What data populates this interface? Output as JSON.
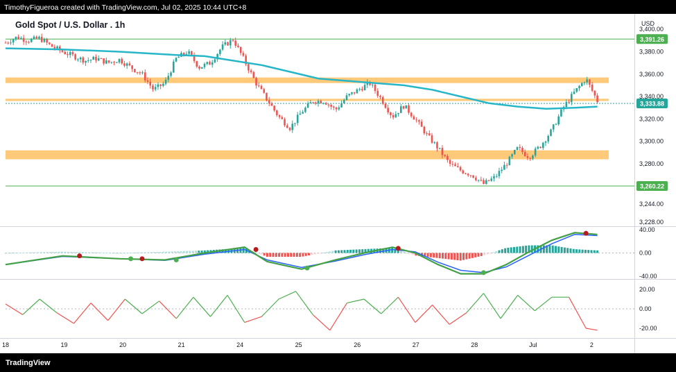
{
  "header": {
    "text": "TimothyFigueroa created with TradingView.com, Jul 02, 2025 10:44 UTC+8"
  },
  "footer": {
    "brand": "TradingView"
  },
  "chart_data": [
    {
      "type": "candlestick",
      "title": "Gold Spot / U.S. Dollar . 1h",
      "currency": "USD",
      "ylim": [
        3228,
        3410
      ],
      "y_ticks": [
        "3,400.00",
        "3,380.00",
        "3,360.00",
        "3,340.00",
        "3,320.00",
        "3,300.00",
        "3,280.00",
        "3,244.00",
        "3,228.00"
      ],
      "y_tick_values": [
        3400,
        3380,
        3360,
        3340,
        3320,
        3300,
        3280,
        3244,
        3228
      ],
      "x_ticks": [
        "18",
        "19",
        "20",
        "21",
        "24",
        "25",
        "26",
        "27",
        "28",
        "Jul",
        "2"
      ],
      "price_labels": [
        {
          "text": "3,391.26",
          "value": 3391.26,
          "color": "#4caf50"
        },
        {
          "text": "3,333.88",
          "value": 3333.88,
          "color": "#26a69a"
        },
        {
          "text": "3,260.22",
          "value": 3260.22,
          "color": "#4caf50"
        }
      ],
      "horizontal_lines": [
        3391.26,
        3260.22,
        3333.88
      ],
      "zones": [
        {
          "low": 3352,
          "high": 3357,
          "color": "#ffb74d"
        },
        {
          "low": 3336,
          "high": 3338,
          "color": "#ffb74d"
        },
        {
          "low": 3284,
          "high": 3292,
          "color": "#ffb74d"
        }
      ],
      "moving_average": {
        "color": "#26b6c8",
        "x": [
          0,
          1,
          2,
          3,
          3.5,
          4,
          4.5,
          5,
          5.5,
          6,
          6.5,
          7,
          7.5,
          8,
          8.5,
          9,
          9.5,
          10,
          10.4
        ],
        "y": [
          3383,
          3382,
          3380,
          3377,
          3376,
          3372,
          3368,
          3362,
          3356,
          3354,
          3352,
          3350,
          3346,
          3340,
          3334,
          3331,
          3329,
          3330,
          3331
        ]
      },
      "candle_path": {
        "x": [
          0,
          0.2,
          0.4,
          0.6,
          0.8,
          1,
          1.2,
          1.4,
          1.6,
          1.8,
          2,
          2.2,
          2.4,
          2.6,
          2.8,
          3,
          3.2,
          3.4,
          3.6,
          3.8,
          4,
          4.2,
          4.4,
          4.6,
          4.8,
          5,
          5.2,
          5.4,
          5.6,
          5.8,
          6,
          6.2,
          6.4,
          6.6,
          6.8,
          7,
          7.2,
          7.4,
          7.6,
          7.8,
          8,
          8.2,
          8.4,
          8.6,
          8.8,
          9,
          9.2,
          9.4,
          9.6,
          9.8,
          10,
          10.2,
          10.4
        ],
        "y": [
          3388,
          3393,
          3390,
          3392,
          3385,
          3380,
          3376,
          3372,
          3374,
          3370,
          3373,
          3366,
          3360,
          3346,
          3352,
          3374,
          3380,
          3366,
          3370,
          3384,
          3391,
          3372,
          3352,
          3337,
          3322,
          3312,
          3326,
          3336,
          3336,
          3328,
          3340,
          3346,
          3352,
          3338,
          3322,
          3332,
          3320,
          3306,
          3294,
          3280,
          3274,
          3270,
          3262,
          3268,
          3280,
          3294,
          3286,
          3296,
          3310,
          3330,
          3344,
          3356,
          3336
        ]
      }
    },
    {
      "type": "oscillator",
      "y_ticks": [
        "40.00",
        "0.00",
        "-40.00"
      ],
      "y_tick_values": [
        40,
        0,
        -40
      ],
      "ylim": [
        -45,
        45
      ],
      "line_green": {
        "x": [
          0,
          1,
          2,
          2.8,
          3.5,
          4.2,
          4.6,
          5.2,
          5.8,
          6.3,
          6.8,
          7.2,
          7.6,
          8,
          8.4,
          8.8,
          9.2,
          9.6,
          10,
          10.4
        ],
        "y": [
          -20,
          -5,
          -10,
          -12,
          0,
          10,
          -15,
          -28,
          -12,
          0,
          10,
          0,
          -20,
          -36,
          -36,
          -20,
          2,
          22,
          35,
          32
        ]
      },
      "line_blue": {
        "x": [
          0,
          1,
          2,
          2.8,
          3.5,
          4.2,
          4.6,
          5.2,
          5.8,
          6.3,
          6.8,
          7.2,
          7.6,
          8,
          8.4,
          8.8,
          9.2,
          9.6,
          10,
          10.4
        ],
        "y": [
          -20,
          -6,
          -10,
          -13,
          -2,
          6,
          -12,
          -25,
          -14,
          -3,
          6,
          2,
          -16,
          -30,
          -34,
          -24,
          -4,
          16,
          32,
          30
        ]
      },
      "signal_dots": [
        {
          "x": 1.3,
          "y": -5,
          "color": "#b71c1c"
        },
        {
          "x": 2.2,
          "y": -10,
          "color": "#4caf50"
        },
        {
          "x": 2.4,
          "y": -10,
          "color": "#b71c1c"
        },
        {
          "x": 3.0,
          "y": -12,
          "color": "#4caf50"
        },
        {
          "x": 4.4,
          "y": 6,
          "color": "#b71c1c"
        },
        {
          "x": 5.3,
          "y": -26,
          "color": "#4caf50"
        },
        {
          "x": 6.9,
          "y": 8,
          "color": "#b71c1c"
        },
        {
          "x": 8.4,
          "y": -34,
          "color": "#4caf50"
        },
        {
          "x": 10.2,
          "y": 34,
          "color": "#b71c1c"
        }
      ]
    },
    {
      "type": "line",
      "y_ticks": [
        "20.00",
        "0.00",
        "-20.00"
      ],
      "y_tick_values": [
        20,
        0,
        -20
      ],
      "ylim": [
        -30,
        30
      ],
      "series": {
        "x": [
          0,
          0.3,
          0.6,
          0.9,
          1.2,
          1.5,
          1.8,
          2.1,
          2.4,
          2.7,
          3,
          3.3,
          3.6,
          3.9,
          4.2,
          4.5,
          4.8,
          5.1,
          5.4,
          5.7,
          6,
          6.3,
          6.6,
          6.9,
          7.2,
          7.5,
          7.8,
          8.1,
          8.4,
          8.7,
          9,
          9.3,
          9.6,
          9.9,
          10.2,
          10.4
        ],
        "y": [
          5,
          -6,
          10,
          -4,
          -15,
          6,
          -12,
          10,
          -5,
          8,
          -10,
          12,
          -8,
          14,
          -14,
          -8,
          10,
          18,
          -6,
          -22,
          6,
          10,
          -5,
          12,
          -14,
          4,
          -16,
          -4,
          16,
          -10,
          14,
          -2,
          12,
          12,
          -20,
          -22
        ]
      }
    }
  ]
}
